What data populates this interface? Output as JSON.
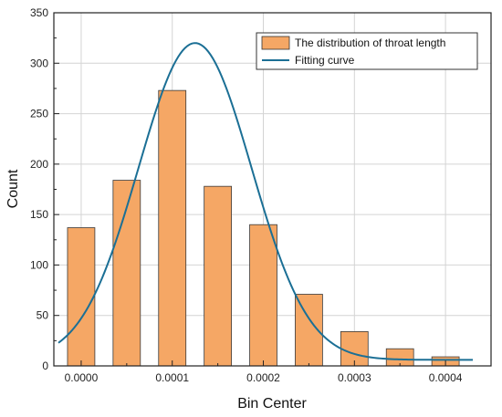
{
  "chart_data": {
    "type": "bar",
    "xlabel": "Bin Center",
    "ylabel": "Count",
    "xlim": [
      -3e-05,
      0.00045
    ],
    "ylim": [
      0,
      350
    ],
    "xticks": [
      "0.0000",
      "0.0001",
      "0.0002",
      "0.0003",
      "0.0004"
    ],
    "xtick_values": [
      0,
      0.0001,
      0.0002,
      0.0003,
      0.0004
    ],
    "yticks": [
      "0",
      "50",
      "100",
      "150",
      "200",
      "250",
      "300",
      "350"
    ],
    "ytick_values": [
      0,
      50,
      100,
      150,
      200,
      250,
      300,
      350
    ],
    "grid": true,
    "legend_position": "top-right",
    "bar_width": 3e-05,
    "series": [
      {
        "name": "The distribution of throat length",
        "type": "bar",
        "color": "#f5a765",
        "x": [
          0.0,
          5e-05,
          0.0001,
          0.00015,
          0.0002,
          0.00025,
          0.0003,
          0.00035,
          0.0004
        ],
        "values": [
          137,
          184,
          273,
          178,
          140,
          71,
          34,
          17,
          9
        ]
      },
      {
        "name": "Fitting curve",
        "type": "line",
        "color": "#1b6f95",
        "model": "gaussian",
        "y0": 6,
        "amplitude": 314,
        "center": 0.000125,
        "sigma": 6.2e-05,
        "x_range": [
          -2.5e-05,
          0.00043
        ]
      }
    ]
  }
}
